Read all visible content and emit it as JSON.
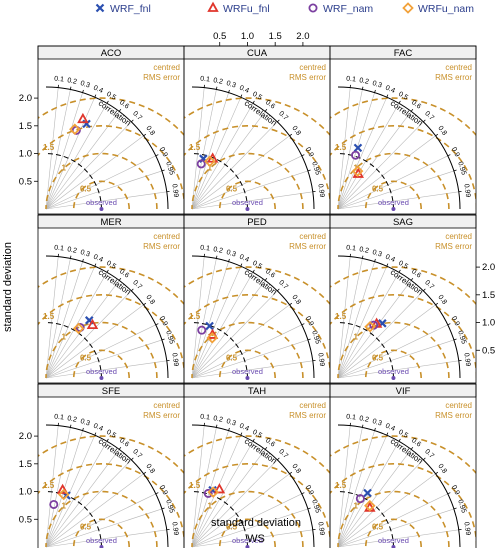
{
  "legend": {
    "items": [
      {
        "label": "WRF_fnl",
        "marker": "cross",
        "color": "#2b4fb0"
      },
      {
        "label": "WRFu_fnl",
        "marker": "triangle",
        "color": "#e0362c"
      },
      {
        "label": "WRF_nam",
        "marker": "circle",
        "color": "#7b3fa0"
      },
      {
        "label": "WRFu_nam",
        "marker": "diamond",
        "color": "#f2a23a"
      }
    ]
  },
  "labels": {
    "xlabel": "standard deviation",
    "xsublabel": "WS",
    "ylabel": "standard deviation",
    "centred": "centred",
    "rms": "RMS error",
    "correlation": "correlation",
    "observed": "observed"
  },
  "colors": {
    "rms_arc": "#c8902a",
    "grid_ray": "#b8b8b8",
    "observed": "#6a4bb0",
    "strip_bg": "#f0f0f0"
  },
  "chart_data": {
    "type": "taylor-diagram",
    "layout": "3x3 panels",
    "x_ticks": [
      "0.5",
      "1.0",
      "1.5",
      "2.0"
    ],
    "y_ticks": [
      "0.5",
      "1.0",
      "1.5",
      "2.0"
    ],
    "std_range": [
      0,
      2.2
    ],
    "observed_std": 1.0,
    "correlation_ticks": [
      "0.1",
      "0.2",
      "0.3",
      "0.4",
      "0.5",
      "0.6",
      "0.7",
      "0.8",
      "0.9",
      "0.95",
      "0.99"
    ],
    "rms_arcs": [
      "0.5",
      "1",
      "1.5",
      "2"
    ],
    "panels": [
      {
        "name": "ACO",
        "points": [
          {
            "series": "WRF_fnl",
            "sd": 1.7,
            "cor": 0.43
          },
          {
            "series": "WRFu_fnl",
            "sd": 1.75,
            "cor": 0.38
          },
          {
            "series": "WRF_nam",
            "sd": 1.52,
            "cor": 0.36
          },
          {
            "series": "WRFu_nam",
            "sd": 1.53,
            "cor": 0.34
          }
        ]
      },
      {
        "name": "CUA",
        "points": [
          {
            "series": "WRF_fnl",
            "sd": 0.93,
            "cor": 0.22
          },
          {
            "series": "WRFu_fnl",
            "sd": 0.98,
            "cor": 0.38
          },
          {
            "series": "WRF_nam",
            "sd": 0.83,
            "cor": 0.2
          },
          {
            "series": "WRFu_nam",
            "sd": 0.92,
            "cor": 0.35
          }
        ]
      },
      {
        "name": "FAC",
        "points": [
          {
            "series": "WRF_fnl",
            "sd": 1.16,
            "cor": 0.31
          },
          {
            "series": "WRFu_fnl",
            "sd": 0.73,
            "cor": 0.5
          },
          {
            "series": "WRF_nam",
            "sd": 1.02,
            "cor": 0.31
          },
          {
            "series": "WRFu_nam",
            "sd": 0.77,
            "cor": 0.46
          }
        ]
      },
      {
        "name": "MER",
        "points": [
          {
            "series": "WRF_fnl",
            "sd": 1.3,
            "cor": 0.6
          },
          {
            "series": "WRFu_fnl",
            "sd": 1.27,
            "cor": 0.66
          },
          {
            "series": "WRF_nam",
            "sd": 1.1,
            "cor": 0.56
          },
          {
            "series": "WRFu_nam",
            "sd": 1.07,
            "cor": 0.55
          }
        ]
      },
      {
        "name": "PED",
        "points": [
          {
            "series": "WRF_fnl",
            "sd": 0.99,
            "cor": 0.32
          },
          {
            "series": "WRFu_fnl",
            "sd": 0.86,
            "cor": 0.43
          },
          {
            "series": "WRF_nam",
            "sd": 0.88,
            "cor": 0.2
          },
          {
            "series": "WRFu_nam",
            "sd": 0.81,
            "cor": 0.45
          }
        ]
      },
      {
        "name": "SAG",
        "points": [
          {
            "series": "WRF_fnl",
            "sd": 1.27,
            "cor": 0.63
          },
          {
            "series": "WRFu_fnl",
            "sd": 1.2,
            "cor": 0.58
          },
          {
            "series": "WRF_nam",
            "sd": 1.15,
            "cor": 0.56
          },
          {
            "series": "WRFu_nam",
            "sd": 1.09,
            "cor": 0.53
          }
        ]
      },
      {
        "name": "SFE",
        "points": [
          {
            "series": "WRF_fnl",
            "sd": 1.0,
            "cor": 0.37
          },
          {
            "series": "WRFu_fnl",
            "sd": 1.07,
            "cor": 0.28
          },
          {
            "series": "WRF_nam",
            "sd": 0.78,
            "cor": 0.18
          },
          {
            "series": "WRFu_nam",
            "sd": 1.0,
            "cor": 0.32
          }
        ]
      },
      {
        "name": "TAH",
        "points": [
          {
            "series": "WRF_fnl",
            "sd": 1.09,
            "cor": 0.34
          },
          {
            "series": "WRFu_fnl",
            "sd": 1.15,
            "cor": 0.43
          },
          {
            "series": "WRF_nam",
            "sd": 1.01,
            "cor": 0.29
          },
          {
            "series": "WRFu_nam",
            "sd": 1.06,
            "cor": 0.36
          }
        ]
      },
      {
        "name": "VIF",
        "points": [
          {
            "series": "WRF_fnl",
            "sd": 1.11,
            "cor": 0.48
          },
          {
            "series": "WRFu_fnl",
            "sd": 0.91,
            "cor": 0.63
          },
          {
            "series": "WRF_nam",
            "sd": 0.96,
            "cor": 0.42
          },
          {
            "series": "WRFu_nam",
            "sd": 0.94,
            "cor": 0.61
          }
        ]
      }
    ]
  }
}
